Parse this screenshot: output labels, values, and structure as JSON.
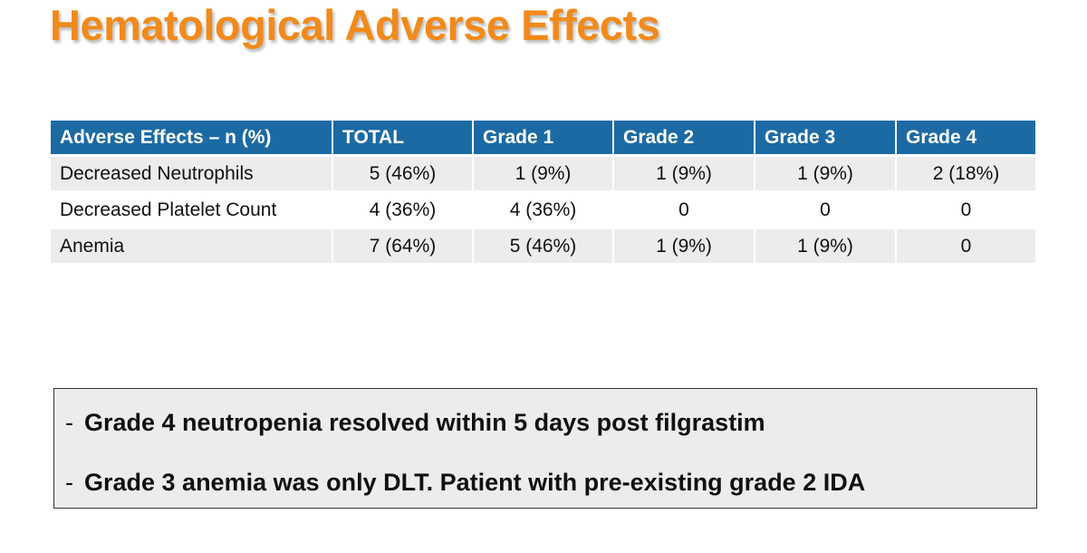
{
  "slide": {
    "title": "Hematological Adverse Effects"
  },
  "table": {
    "headers": [
      "Adverse Effects – n (%)",
      "TOTAL",
      "Grade 1",
      "Grade 2",
      "Grade 3",
      "Grade 4"
    ],
    "rows": [
      [
        "Decreased Neutrophils",
        "5 (46%)",
        "1 (9%)",
        "1 (9%)",
        "1 (9%)",
        "2 (18%)"
      ],
      [
        "Decreased Platelet Count",
        "4 (36%)",
        "4 (36%)",
        "0",
        "0",
        "0"
      ],
      [
        "Anemia",
        "7 (64%)",
        "5 (46%)",
        "1 (9%)",
        "1 (9%)",
        "0"
      ]
    ]
  },
  "notes": {
    "bullet": "-",
    "items": [
      "Grade 4 neutropenia resolved within 5 days post filgrastim",
      "Grade 3 anemia was only DLT. Patient with pre-existing grade 2 IDA"
    ]
  },
  "colors": {
    "title": "#f28a1a",
    "header_bg": "#1c6aa3",
    "header_text": "#ffffff",
    "row_shade": "#ececec",
    "note_bg": "#ececec"
  }
}
